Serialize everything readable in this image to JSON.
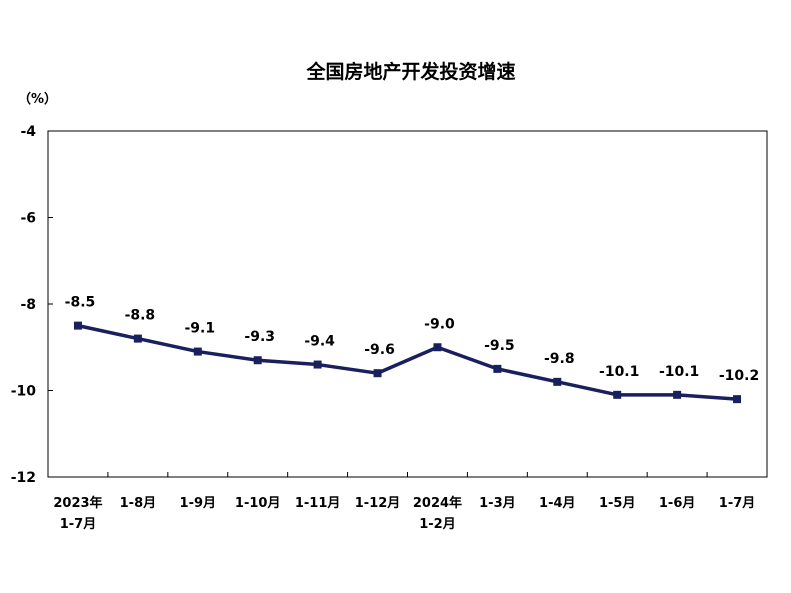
{
  "chart_data": {
    "type": "line",
    "title": "全国房地产开发投资增速",
    "ylabel": "（%）",
    "ylim": [
      -12,
      -4
    ],
    "yticks": [
      "-4",
      "-6",
      "-8",
      "-10",
      "-12"
    ],
    "categories": [
      [
        "2023年",
        "1-7月"
      ],
      [
        "1-8月"
      ],
      [
        "1-9月"
      ],
      [
        "1-10月"
      ],
      [
        "1-11月"
      ],
      [
        "1-12月"
      ],
      [
        "2024年",
        "1-2月"
      ],
      [
        "1-3月"
      ],
      [
        "1-4月"
      ],
      [
        "1-5月"
      ],
      [
        "1-6月"
      ],
      [
        "1-7月"
      ]
    ],
    "series": [
      {
        "values": [
          -8.5,
          -8.8,
          -9.1,
          -9.3,
          -9.4,
          -9.6,
          -9.0,
          -9.5,
          -9.8,
          -10.1,
          -10.1,
          -10.2
        ],
        "labels": [
          "-8.5",
          "-8.8",
          "-9.1",
          "-9.3",
          "-9.4",
          "-9.6",
          "-9.0",
          "-9.5",
          "-9.8",
          "-10.1",
          "-10.1",
          "-10.2"
        ]
      }
    ],
    "line_color": "#1a1f5e",
    "grid": false,
    "legend": "none"
  }
}
